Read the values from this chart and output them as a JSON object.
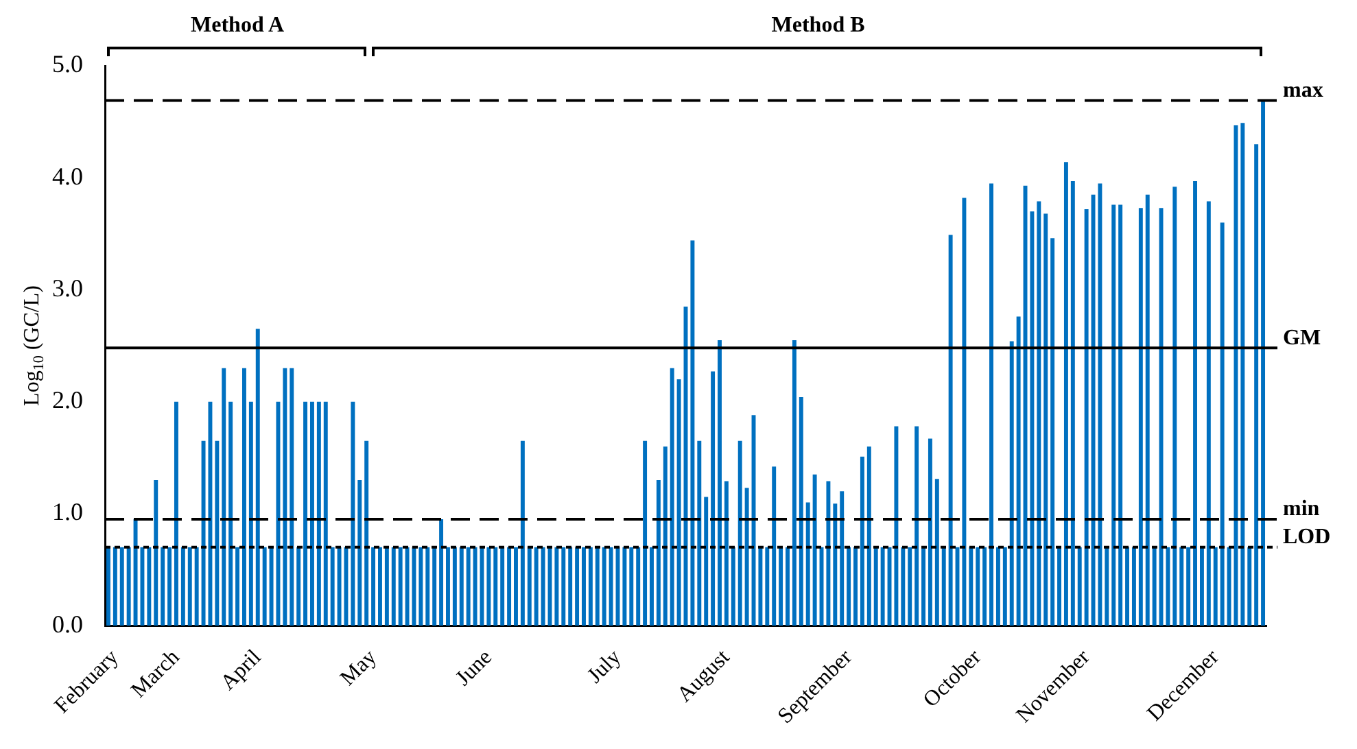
{
  "chart_data": {
    "type": "bar",
    "ylabel": "Log$_{10}$ (GC/L)",
    "annotations": [
      "Method A",
      "Method B"
    ],
    "categories": [
      null,
      "February",
      null,
      null,
      null,
      null,
      null,
      null,
      null,
      null,
      "March",
      null,
      null,
      null,
      null,
      null,
      null,
      null,
      null,
      null,
      null,
      null,
      "April",
      null,
      null,
      null,
      null,
      null,
      null,
      null,
      null,
      null,
      null,
      null,
      null,
      null,
      null,
      null,
      null,
      "May",
      null,
      null,
      null,
      null,
      null,
      null,
      null,
      null,
      null,
      null,
      null,
      null,
      null,
      null,
      null,
      null,
      "June",
      null,
      null,
      null,
      null,
      null,
      null,
      null,
      null,
      null,
      null,
      null,
      null,
      null,
      null,
      null,
      null,
      null,
      null,
      "July",
      null,
      null,
      null,
      null,
      null,
      null,
      null,
      null,
      null,
      null,
      null,
      null,
      null,
      null,
      null,
      "August",
      null,
      null,
      null,
      null,
      null,
      null,
      null,
      null,
      null,
      null,
      null,
      null,
      null,
      null,
      null,
      null,
      null,
      "September",
      null,
      null,
      null,
      null,
      null,
      null,
      null,
      null,
      null,
      null,
      null,
      null,
      null,
      null,
      null,
      null,
      null,
      null,
      "October",
      null,
      null,
      null,
      null,
      null,
      null,
      null,
      null,
      null,
      null,
      null,
      null,
      null,
      null,
      null,
      "November",
      null,
      null,
      null,
      null,
      null,
      null,
      null,
      null,
      null,
      null,
      null,
      null,
      null,
      null,
      null,
      null,
      null,
      null,
      "December",
      null,
      null,
      null,
      null,
      null,
      null,
      null
    ],
    "values": [
      0.7,
      0.7,
      0.7,
      0.7,
      0.95,
      0.7,
      0.7,
      1.3,
      0.7,
      0.7,
      2.0,
      0.7,
      0.7,
      0.7,
      1.65,
      2.0,
      1.65,
      2.3,
      2.0,
      0.7,
      2.3,
      2.0,
      2.65,
      0.7,
      0.7,
      2.0,
      2.3,
      2.3,
      0.7,
      2.0,
      2.0,
      2.0,
      2.0,
      0.7,
      0.7,
      0.7,
      2.0,
      1.3,
      1.65,
      0.7,
      0.7,
      0.7,
      0.7,
      0.7,
      0.7,
      0.7,
      0.7,
      0.7,
      0.7,
      0.95,
      0.7,
      0.7,
      0.7,
      0.7,
      0.7,
      0.7,
      0.7,
      0.7,
      0.7,
      0.7,
      0.7,
      1.65,
      0.7,
      0.7,
      0.7,
      0.7,
      0.7,
      0.7,
      0.7,
      0.7,
      0.7,
      0.7,
      0.7,
      0.7,
      0.7,
      0.7,
      0.7,
      0.7,
      0.7,
      1.65,
      0.7,
      1.3,
      1.6,
      2.3,
      2.2,
      2.85,
      3.44,
      1.65,
      1.15,
      2.27,
      2.55,
      1.29,
      0.7,
      1.65,
      1.23,
      1.88,
      0.7,
      0.7,
      1.42,
      0.7,
      0.7,
      2.55,
      2.04,
      1.1,
      1.35,
      0.7,
      1.29,
      1.09,
      1.2,
      0.7,
      0.7,
      1.51,
      1.6,
      0.7,
      0.7,
      0.7,
      1.78,
      0.7,
      0.7,
      1.78,
      0.7,
      1.67,
      1.31,
      0.7,
      3.49,
      0.7,
      3.82,
      0.7,
      0.7,
      0.7,
      3.95,
      0.7,
      0.7,
      2.54,
      2.76,
      3.93,
      3.7,
      3.79,
      3.68,
      3.46,
      0.7,
      4.14,
      3.97,
      0.7,
      3.72,
      3.85,
      3.95,
      0.7,
      3.76,
      3.76,
      0.7,
      0.7,
      3.73,
      3.85,
      0.7,
      3.73,
      0.7,
      3.92,
      0.7,
      0.7,
      3.97,
      0.7,
      3.79,
      0.7,
      3.6,
      0.7,
      4.47,
      4.49,
      0.7,
      4.3,
      4.69
    ],
    "color": "#0070c0",
    "ylim": [
      0,
      5
    ],
    "yticks": [
      {
        "value": 0,
        "label": "0.0"
      },
      {
        "value": 1,
        "label": "1.0"
      },
      {
        "value": 2,
        "label": "2.0"
      },
      {
        "value": 3,
        "label": "3.0"
      },
      {
        "value": 4,
        "label": "4.0"
      },
      {
        "value": 5,
        "label": "5.0"
      }
    ],
    "ref_lines": [
      {
        "axis": "y",
        "value": 4.69,
        "label": "max",
        "line_style": "dashed",
        "color": "#000000"
      },
      {
        "axis": "y",
        "value": 2.48,
        "label": "GM",
        "line_style": "solid",
        "color": "#000000"
      },
      {
        "axis": "y",
        "value": 0.95,
        "label": "min",
        "line_style": "dashed",
        "color": "#000000"
      },
      {
        "axis": "y",
        "value": 0.7,
        "label": "LOD",
        "line_style": "dotted",
        "color": "#000000"
      }
    ]
  }
}
